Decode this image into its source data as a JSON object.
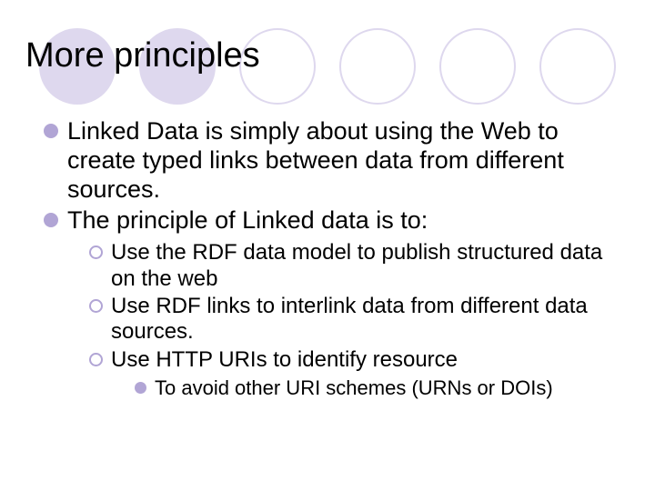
{
  "title": "More principles",
  "background": {
    "circle_count": 6,
    "filled_color": "#ded8ee",
    "outline_color": "#ded8ee",
    "pattern": [
      "filled",
      "filled",
      "outline",
      "outline",
      "outline",
      "outline"
    ]
  },
  "bullet_colors": {
    "level1_fill": "#b1a5d5",
    "level2_ring": "#b1a5d5",
    "level3_fill": "#b1a5d5"
  },
  "typography": {
    "title_fontsize": 38,
    "level1_fontsize": 27,
    "level2_fontsize": 24,
    "level3_fontsize": 22,
    "font_family": "Arial",
    "text_color": "#000000"
  },
  "items": [
    {
      "text": "Linked Data is simply about using the Web to create typed links between data from different sources.",
      "children": []
    },
    {
      "text": "The principle of Linked data is to:",
      "children": [
        {
          "text": "Use the RDF data model to publish structured data on the web",
          "children": []
        },
        {
          "text": "Use RDF links to interlink data from different data sources.",
          "children": []
        },
        {
          "text": "Use HTTP URIs to identify resource",
          "children": [
            {
              "text": "To avoid other URI schemes (URNs or DOIs)"
            }
          ]
        }
      ]
    }
  ]
}
